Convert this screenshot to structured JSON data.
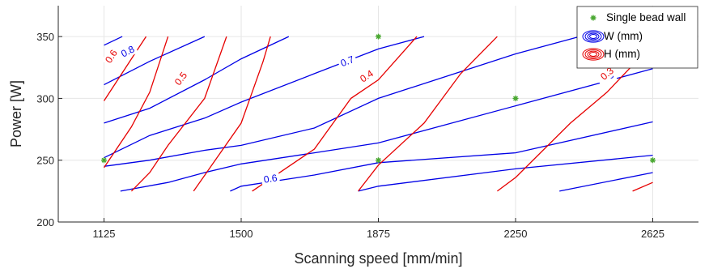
{
  "chart_data": {
    "type": "contour",
    "xlabel": "Scanning speed [mm/min]",
    "ylabel": "Power [W]",
    "xlim": [
      1000,
      2750
    ],
    "ylim": [
      200,
      375
    ],
    "xticks": [
      1125,
      1500,
      1875,
      2250,
      2625
    ],
    "yticks": [
      200,
      250,
      300,
      350
    ],
    "grid": true,
    "legend_position": "top-right",
    "legend": [
      {
        "label": "Single bead wall",
        "marker": "star",
        "color": "#4aa832"
      },
      {
        "label": "W (mm)",
        "marker": "contour",
        "color": "#0000e6"
      },
      {
        "label": "H (mm)",
        "marker": "contour",
        "color": "#e60000"
      }
    ],
    "points": {
      "name": "Single bead wall",
      "x": [
        1125,
        1875,
        1875,
        2250,
        2625
      ],
      "y": [
        250,
        350,
        250,
        300,
        250
      ]
    },
    "series": [
      {
        "name": "W (mm)",
        "color": "#0000e6",
        "lines": [
          {
            "points": [
              [
                1125,
                343
              ],
              [
                1175,
                350
              ]
            ]
          },
          {
            "points": [
              [
                1125,
                311
              ],
              [
                1250,
                330
              ],
              [
                1400,
                350
              ]
            ],
            "label": "0.8",
            "label_at": [
              1190,
              338
            ]
          },
          {
            "points": [
              [
                1125,
                280
              ],
              [
                1250,
                292
              ],
              [
                1400,
                315
              ],
              [
                1500,
                332
              ],
              [
                1630,
                350
              ]
            ]
          },
          {
            "points": [
              [
                1125,
                252
              ],
              [
                1250,
                270
              ],
              [
                1400,
                284
              ],
              [
                1500,
                297
              ],
              [
                1700,
                320
              ],
              [
                1875,
                340
              ],
              [
                2000,
                350
              ]
            ],
            "label": "0.7",
            "label_at": [
              1790,
              330
            ]
          },
          {
            "points": [
              [
                1125,
                245
              ],
              [
                1250,
                250
              ],
              [
                1400,
                258
              ],
              [
                1500,
                262
              ],
              [
                1700,
                276
              ],
              [
                1875,
                300
              ],
              [
                2250,
                336
              ],
              [
                2500,
                356
              ]
            ]
          },
          {
            "points": [
              [
                1170,
                225
              ],
              [
                1300,
                232
              ],
              [
                1400,
                240
              ],
              [
                1500,
                247
              ],
              [
                1700,
                256
              ],
              [
                1875,
                264
              ],
              [
                2250,
                294
              ],
              [
                2625,
                324
              ]
            ],
            "label": "0.6",
            "label_at": [
              2500,
              318
            ]
          },
          {
            "points": [
              [
                1470,
                225
              ],
              [
                1500,
                229
              ],
              [
                1700,
                238
              ],
              [
                1875,
                248
              ],
              [
                2250,
                256
              ],
              [
                2625,
                281
              ]
            ],
            "label": "0.6",
            "label_at": [
              1580,
              235
            ]
          },
          {
            "points": [
              [
                1820,
                225
              ],
              [
                1875,
                229
              ],
              [
                2250,
                243
              ],
              [
                2625,
                254
              ]
            ]
          },
          {
            "points": [
              [
                2370,
                225
              ],
              [
                2625,
                240
              ]
            ]
          }
        ]
      },
      {
        "name": "H (mm)",
        "color": "#e60000",
        "lines": [
          {
            "points": [
              [
                1125,
                244
              ],
              [
                1200,
                277
              ],
              [
                1250,
                305
              ],
              [
                1300,
                350
              ]
            ]
          },
          {
            "points": [
              [
                1125,
                298
              ],
              [
                1200,
                332
              ],
              [
                1240,
                350
              ]
            ],
            "label": "0.6",
            "label_at": [
              1145,
              334
            ]
          },
          {
            "points": [
              [
                1200,
                225
              ],
              [
                1250,
                240
              ],
              [
                1300,
                262
              ],
              [
                1400,
                300
              ],
              [
                1460,
                350
              ]
            ],
            "label": "0.5",
            "label_at": [
              1335,
              316
            ]
          },
          {
            "points": [
              [
                1370,
                225
              ],
              [
                1500,
                280
              ],
              [
                1560,
                330
              ],
              [
                1580,
                350
              ]
            ]
          },
          {
            "points": [
              [
                1530,
                225
              ],
              [
                1700,
                259
              ],
              [
                1800,
                300
              ],
              [
                1875,
                315
              ],
              [
                1980,
                350
              ]
            ],
            "label": "0.4",
            "label_at": [
              1843,
              318
            ]
          },
          {
            "points": [
              [
                1820,
                225
              ],
              [
                1875,
                246
              ],
              [
                2000,
                280
              ],
              [
                2100,
                320
              ],
              [
                2200,
                350
              ]
            ]
          },
          {
            "points": [
              [
                2200,
                225
              ],
              [
                2250,
                236
              ],
              [
                2400,
                280
              ],
              [
                2500,
                305
              ],
              [
                2580,
                330
              ],
              [
                2620,
                350
              ]
            ],
            "label": "0.3",
            "label_at": [
              2500,
              320
            ]
          },
          {
            "points": [
              [
                2570,
                225
              ],
              [
                2625,
                232
              ]
            ]
          }
        ]
      }
    ]
  },
  "colors": {
    "w_contours": "#0000e6",
    "h_contours": "#e60000",
    "markers": "#4aa832",
    "grid": "#e6e6e6",
    "axis": "#262626"
  }
}
